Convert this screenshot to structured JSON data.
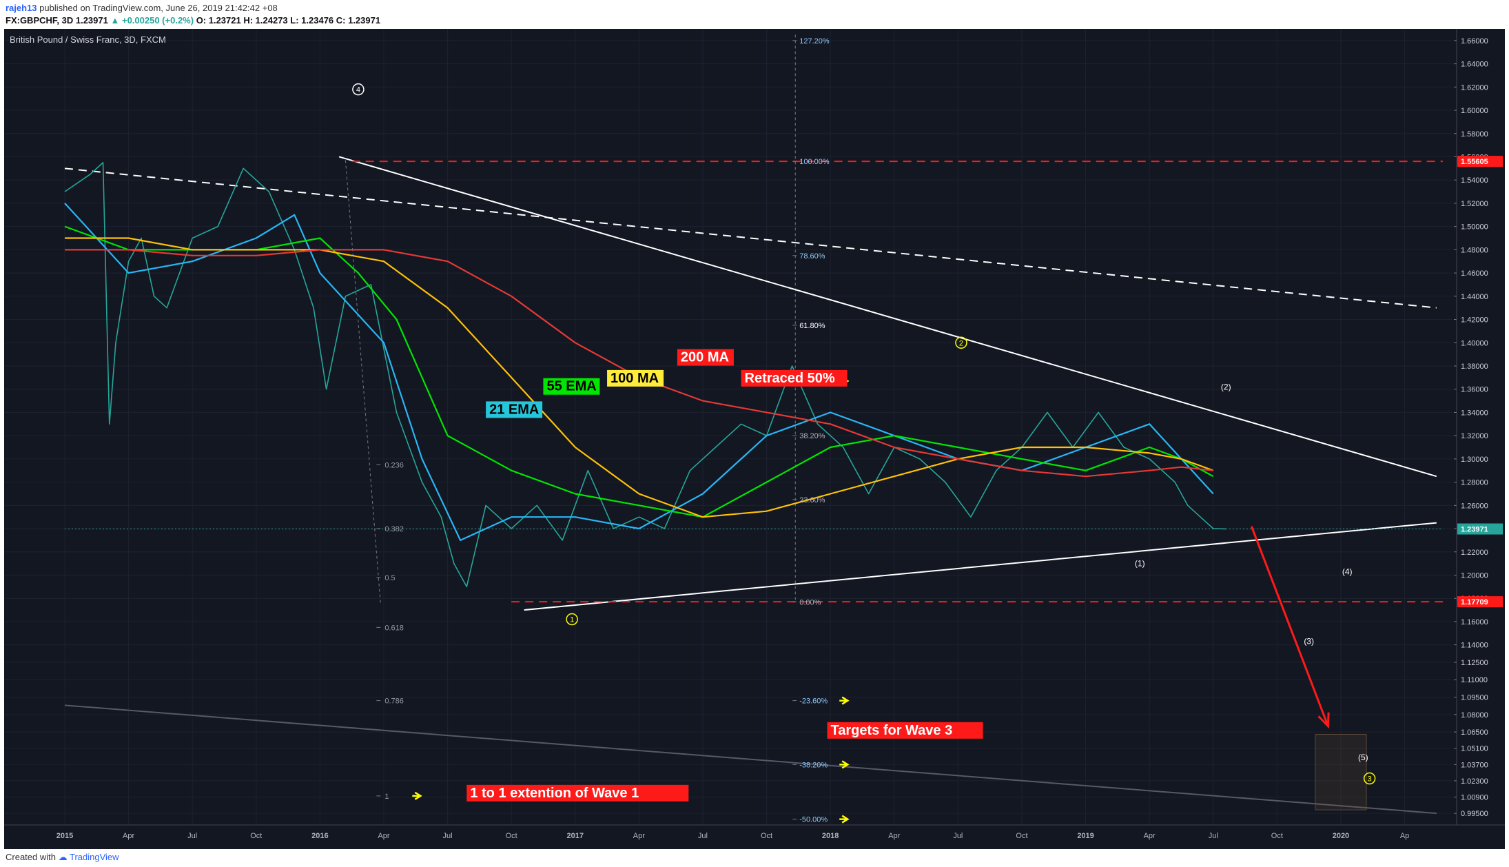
{
  "header": {
    "user": "rajeh13",
    "published_text": "published on TradingView.com, June 26, 2019 21:42:42 +08",
    "symbol_line": "FX:GBPCHF, 3D",
    "last": "1.23971",
    "change": "+0.00250 (+0.2%)",
    "ohlc": "O: 1.23721 H: 1.24273 L: 1.23476 C: 1.23971"
  },
  "footer": {
    "created_with": "Created with",
    "brand": "TradingView"
  },
  "chart_data": {
    "type": "line",
    "title": "British Pound / Swiss Franc, 3D, FXCM",
    "x_ticks": [
      "2015",
      "Apr",
      "Jul",
      "Oct",
      "2016",
      "Apr",
      "Jul",
      "Oct",
      "2017",
      "Apr",
      "Jul",
      "Oct",
      "2018",
      "Apr",
      "Jul",
      "Oct",
      "2019",
      "Apr",
      "Jul",
      "Oct",
      "2020",
      "Ap"
    ],
    "y_ticks": [
      "1.66000",
      "1.64000",
      "1.62000",
      "1.60000",
      "1.58000",
      "1.56000",
      "1.54000",
      "1.52000",
      "1.50000",
      "1.48000",
      "1.46000",
      "1.44000",
      "1.42000",
      "1.40000",
      "1.38000",
      "1.36000",
      "1.34000",
      "1.32000",
      "1.30000",
      "1.28000",
      "1.26000",
      "1.24000",
      "1.22000",
      "1.20000",
      "1.18000",
      "1.16000",
      "1.14000",
      "1.12500",
      "1.11000",
      "1.09500",
      "1.08000",
      "1.06500",
      "1.05100",
      "1.03700",
      "1.02300",
      "1.00900",
      "0.99500"
    ],
    "ylim": [
      0.985,
      1.67
    ],
    "price_badges": [
      {
        "label": "1.55605",
        "value": 1.55605,
        "color": "#ff1a1a"
      },
      {
        "label": "1.23971",
        "value": 1.23971,
        "color": "#26a69a"
      },
      {
        "label": "1.17709",
        "value": 1.17709,
        "color": "#ff1a1a"
      }
    ],
    "series": [
      {
        "name": "Price",
        "color": "#26a69a",
        "x": [
          0.0,
          0.4,
          0.6,
          0.7,
          0.8,
          1.0,
          1.2,
          1.4,
          1.6,
          1.8,
          2.0,
          2.4,
          2.8,
          3.2,
          3.6,
          3.9,
          4.1,
          4.4,
          4.8,
          5.2,
          5.6,
          5.9,
          6.1,
          6.3,
          6.6,
          7.0,
          7.4,
          7.8,
          8.2,
          8.6,
          9.0,
          9.4,
          9.8,
          10.2,
          10.6,
          11.0,
          11.4,
          11.8,
          12.2,
          12.6,
          13.0,
          13.4,
          13.8,
          14.2,
          14.6,
          15.0,
          15.4,
          15.8,
          16.2,
          16.6,
          17.0,
          17.4,
          17.6,
          17.8,
          18.0,
          18.2
        ],
        "y": [
          1.53,
          1.545,
          1.555,
          1.33,
          1.4,
          1.47,
          1.49,
          1.44,
          1.43,
          1.46,
          1.49,
          1.5,
          1.55,
          1.53,
          1.48,
          1.43,
          1.36,
          1.44,
          1.45,
          1.34,
          1.28,
          1.25,
          1.21,
          1.19,
          1.26,
          1.24,
          1.26,
          1.23,
          1.29,
          1.24,
          1.25,
          1.24,
          1.29,
          1.31,
          1.33,
          1.32,
          1.38,
          1.33,
          1.31,
          1.27,
          1.31,
          1.3,
          1.28,
          1.25,
          1.29,
          1.31,
          1.34,
          1.31,
          1.34,
          1.31,
          1.3,
          1.28,
          1.26,
          1.25,
          1.24,
          1.2397
        ]
      },
      {
        "name": "21 EMA",
        "color": "#29b6f6",
        "x": [
          0.0,
          1.0,
          2.0,
          3.0,
          3.6,
          4.0,
          5.0,
          5.6,
          6.2,
          7.0,
          8.0,
          9.0,
          10.0,
          11.0,
          12.0,
          13.0,
          14.0,
          15.0,
          16.0,
          17.0,
          17.5,
          18.0
        ],
        "y": [
          1.52,
          1.46,
          1.47,
          1.49,
          1.51,
          1.46,
          1.4,
          1.3,
          1.23,
          1.25,
          1.25,
          1.24,
          1.27,
          1.32,
          1.34,
          1.32,
          1.3,
          1.29,
          1.31,
          1.33,
          1.3,
          1.27
        ]
      },
      {
        "name": "55 EMA",
        "color": "#00e600",
        "x": [
          0.0,
          1.0,
          2.0,
          3.0,
          4.0,
          4.6,
          5.2,
          6.0,
          7.0,
          8.0,
          9.0,
          10.0,
          11.0,
          12.0,
          13.0,
          14.0,
          15.0,
          16.0,
          17.0,
          17.5,
          18.0
        ],
        "y": [
          1.5,
          1.48,
          1.48,
          1.48,
          1.49,
          1.46,
          1.42,
          1.32,
          1.29,
          1.27,
          1.26,
          1.25,
          1.28,
          1.31,
          1.32,
          1.31,
          1.3,
          1.29,
          1.31,
          1.3,
          1.285
        ]
      },
      {
        "name": "100 MA",
        "color": "#ffc107",
        "x": [
          0.0,
          1.0,
          2.0,
          3.0,
          4.0,
          5.0,
          6.0,
          7.0,
          8.0,
          9.0,
          10.0,
          11.0,
          12.0,
          13.0,
          14.0,
          15.0,
          16.0,
          17.0,
          17.5,
          18.0
        ],
        "y": [
          1.49,
          1.49,
          1.48,
          1.48,
          1.48,
          1.47,
          1.43,
          1.37,
          1.31,
          1.27,
          1.25,
          1.255,
          1.27,
          1.285,
          1.3,
          1.31,
          1.31,
          1.305,
          1.3,
          1.29
        ]
      },
      {
        "name": "200 MA",
        "color": "#e53935",
        "x": [
          0.0,
          1.0,
          2.0,
          3.0,
          4.0,
          5.0,
          6.0,
          7.0,
          8.0,
          9.0,
          10.0,
          11.0,
          12.0,
          13.0,
          14.0,
          15.0,
          16.0,
          17.0,
          17.5,
          18.0
        ],
        "y": [
          1.48,
          1.48,
          1.475,
          1.475,
          1.48,
          1.48,
          1.47,
          1.44,
          1.4,
          1.37,
          1.35,
          1.34,
          1.33,
          1.31,
          1.3,
          1.29,
          1.285,
          1.29,
          1.293,
          1.29
        ]
      }
    ],
    "trendlines": [
      {
        "kind": "solid",
        "color": "#ffffff",
        "x": [
          4.3,
          21.5
        ],
        "y": [
          1.56,
          1.285
        ]
      },
      {
        "kind": "solid",
        "color": "#ffffff",
        "x": [
          7.2,
          21.5
        ],
        "y": [
          1.17,
          1.245
        ]
      },
      {
        "kind": "dashed",
        "color": "#ffffff",
        "x": [
          0.0,
          21.5
        ],
        "y": [
          1.55,
          1.43
        ]
      },
      {
        "kind": "solid",
        "color": "#555a66",
        "x": [
          0.0,
          21.5
        ],
        "y": [
          1.088,
          0.995
        ]
      },
      {
        "kind": "dashed",
        "color": "#ff1a1a",
        "x": [
          4.5,
          21.6
        ],
        "y": [
          1.55605,
          1.55605
        ]
      },
      {
        "kind": "dashed",
        "color": "#ff1a1a",
        "x": [
          7.0,
          21.6
        ],
        "y": [
          1.17709,
          1.17709
        ]
      },
      {
        "kind": "dotted",
        "color": "#26a69a",
        "x": [
          0.0,
          21.6
        ],
        "y": [
          1.23971,
          1.23971
        ]
      }
    ],
    "projection_arrow": {
      "color": "#ff1a1a",
      "x": [
        18.6,
        19.8
      ],
      "y": [
        1.242,
        1.07
      ]
    },
    "target_box": {
      "x": [
        19.6,
        20.4
      ],
      "y": [
        1.063,
        0.998
      ]
    },
    "fib_right": [
      {
        "label": "127.20%",
        "value": 1.66
      },
      {
        "label": "100.00%",
        "value": 1.556
      },
      {
        "label": "78.60%",
        "value": 1.475
      },
      {
        "label": "61.80%",
        "value": 1.415
      },
      {
        "label": "50.00%",
        "value": 1.367
      },
      {
        "label": "38.20%",
        "value": 1.32
      },
      {
        "label": "23.60%",
        "value": 1.265
      },
      {
        "label": "0.00%",
        "value": 1.177
      },
      {
        "label": "-23.60%",
        "value": 1.092
      },
      {
        "label": "-38.20%",
        "value": 1.037
      },
      {
        "label": "-50.00%",
        "value": 0.99
      }
    ],
    "fib_left": [
      {
        "label": "0.236",
        "value": 1.295
      },
      {
        "label": "0.382",
        "value": 1.24
      },
      {
        "label": "0.5",
        "value": 1.198
      },
      {
        "label": "0.618",
        "value": 1.155
      },
      {
        "label": "0.786",
        "value": 1.092
      },
      {
        "label": "1",
        "value": 1.01
      }
    ],
    "annotations": [
      {
        "text": "200 MA",
        "bg": "#ff1a1a",
        "fg": "#ffffff",
        "x": 9.6,
        "y": 1.385
      },
      {
        "text": "100 MA",
        "bg": "#ffeb3b",
        "fg": "#000000",
        "x": 8.5,
        "y": 1.367
      },
      {
        "text": "55 EMA",
        "bg": "#00e600",
        "fg": "#000000",
        "x": 7.5,
        "y": 1.36
      },
      {
        "text": "21 EMA",
        "bg": "#26c6da",
        "fg": "#000000",
        "x": 6.6,
        "y": 1.34
      },
      {
        "text": "Retraced 50%",
        "bg": "#ff1a1a",
        "fg": "#ffffff",
        "x": 10.6,
        "y": 1.367
      },
      {
        "text": "Targets for Wave 3",
        "bg": "#ff1a1a",
        "fg": "#ffffff",
        "x": 11.95,
        "y": 1.064
      },
      {
        "text": "1 to 1 extention of Wave 1",
        "bg": "#ff1a1a",
        "fg": "#ffffff",
        "x": 6.3,
        "y": 1.01
      }
    ],
    "wave_labels": [
      {
        "text": "4",
        "style": "circle-white",
        "x": 4.6,
        "y": 1.618
      },
      {
        "text": "2",
        "style": "circle-yellow",
        "x": 14.05,
        "y": 1.4
      },
      {
        "text": "1",
        "style": "circle-yellow",
        "x": 7.95,
        "y": 1.162
      },
      {
        "text": "3",
        "style": "circle-yellow",
        "x": 20.45,
        "y": 1.025
      },
      {
        "text": "(2)",
        "style": "plain",
        "x": 18.2,
        "y": 1.362
      },
      {
        "text": "(1)",
        "style": "plain",
        "x": 16.85,
        "y": 1.21
      },
      {
        "text": "(4)",
        "style": "plain",
        "x": 20.1,
        "y": 1.203
      },
      {
        "text": "(3)",
        "style": "plain",
        "x": 19.5,
        "y": 1.143
      },
      {
        "text": "(5)",
        "style": "plain",
        "x": 20.35,
        "y": 1.043
      }
    ]
  }
}
